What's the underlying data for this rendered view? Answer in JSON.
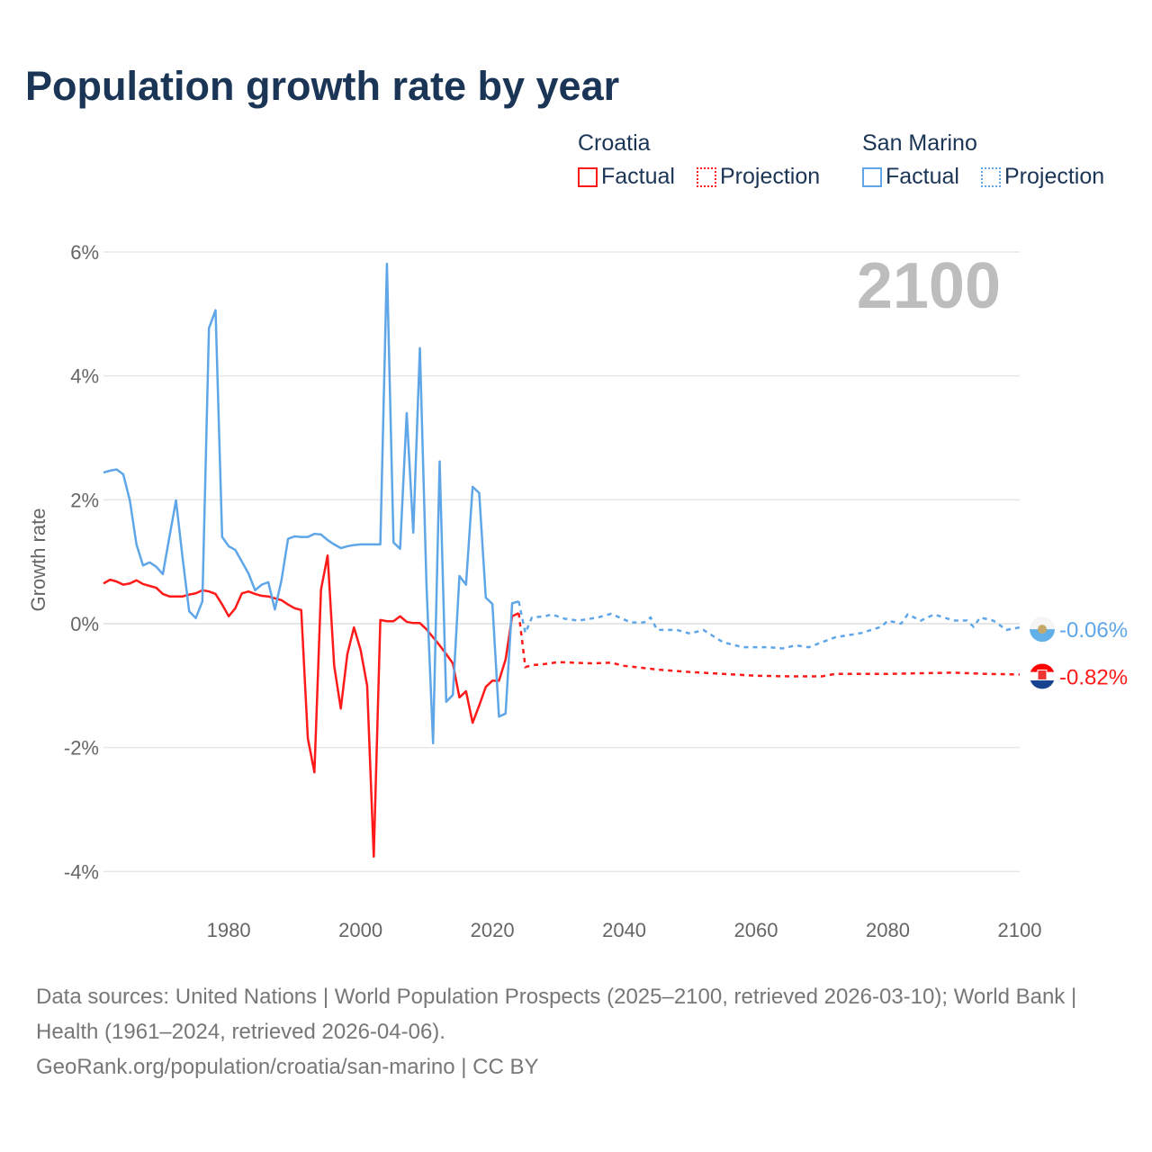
{
  "title": "Population growth rate by year",
  "legend": [
    {
      "country": "Croatia",
      "factual": "Factual",
      "projection": "Projection",
      "color": "#ff1a1a"
    },
    {
      "country": "San Marino",
      "factual": "Factual",
      "projection": "Projection",
      "color": "#5ea6e8"
    }
  ],
  "year_label": "2100",
  "footer": {
    "sources": "Data sources: United Nations | World Population Prospects (2025–2100, retrieved 2026-03-10); World Bank | Health (1961–2024, retrieved 2026-04-06).",
    "credit": "GeoRank.org/population/croatia/san-marino | CC BY"
  },
  "chart_data": {
    "type": "line",
    "title": "Population growth rate by year",
    "xlabel": "",
    "ylabel": "Growth rate",
    "xlim": [
      1961,
      2100
    ],
    "ylim": [
      -4.5,
      6.3
    ],
    "xticks": [
      1980,
      2000,
      2020,
      2040,
      2060,
      2080,
      2100
    ],
    "yticks": [
      6,
      4,
      2,
      0,
      -2,
      -4
    ],
    "ytick_labels": [
      "6%",
      "4%",
      "2%",
      "0%",
      "-2%",
      "-4%"
    ],
    "grid": true,
    "legend_position": "top-right",
    "series": [
      {
        "name": "Croatia",
        "color": "#ff1a1a",
        "end_label": "-0.82%",
        "factual": {
          "start": 1961,
          "values": [
            0.65,
            0.71,
            0.68,
            0.63,
            0.65,
            0.7,
            0.64,
            0.61,
            0.58,
            0.48,
            0.44,
            0.44,
            0.44,
            0.47,
            0.49,
            0.54,
            0.52,
            0.48,
            0.31,
            0.12,
            0.25,
            0.49,
            0.52,
            0.48,
            0.45,
            0.44,
            0.41,
            0.38,
            0.31,
            0.25,
            0.22,
            -1.85,
            -2.4,
            0.55,
            1.1,
            -0.68,
            -1.37,
            -0.49,
            -0.06,
            -0.42,
            -1.0,
            -3.76,
            0.06,
            0.04,
            0.04,
            0.12,
            0.03,
            0.01,
            0.01,
            -0.09,
            -0.22,
            -0.35,
            -0.49,
            -0.64,
            -1.19,
            -1.09,
            -1.6,
            -1.32,
            -1.02,
            -0.92,
            -0.92,
            -0.58,
            0.12,
            0.17
          ]
        },
        "projection": [
          [
            2024,
            0.17
          ],
          [
            2025,
            -0.7
          ],
          [
            2026,
            -0.67
          ],
          [
            2028,
            -0.65
          ],
          [
            2030,
            -0.62
          ],
          [
            2035,
            -0.64
          ],
          [
            2038,
            -0.63
          ],
          [
            2040,
            -0.68
          ],
          [
            2045,
            -0.74
          ],
          [
            2050,
            -0.78
          ],
          [
            2055,
            -0.81
          ],
          [
            2060,
            -0.84
          ],
          [
            2065,
            -0.85
          ],
          [
            2070,
            -0.85
          ],
          [
            2072,
            -0.81
          ],
          [
            2080,
            -0.81
          ],
          [
            2090,
            -0.79
          ],
          [
            2095,
            -0.81
          ],
          [
            2100,
            -0.82
          ]
        ]
      },
      {
        "name": "San Marino",
        "color": "#5ea6e8",
        "end_label": "-0.06%",
        "factual": {
          "start": 1961,
          "values": [
            2.44,
            2.47,
            2.49,
            2.41,
            1.99,
            1.28,
            0.94,
            0.99,
            0.92,
            0.8,
            1.4,
            1.99,
            1.06,
            0.2,
            0.09,
            0.36,
            4.77,
            5.06,
            1.4,
            1.25,
            1.19,
            1.0,
            0.81,
            0.54,
            0.63,
            0.67,
            0.23,
            0.7,
            1.37,
            1.41,
            1.4,
            1.4,
            1.45,
            1.44,
            1.35,
            1.28,
            1.22,
            1.25,
            1.27,
            1.28,
            1.28,
            1.28,
            1.28,
            5.81,
            1.31,
            1.21,
            3.4,
            1.47,
            4.45,
            0.63,
            -1.93,
            2.62,
            -1.26,
            -1.15,
            0.77,
            0.63,
            2.21,
            2.11,
            0.42,
            0.32,
            -1.5,
            -1.45,
            0.33,
            0.36
          ]
        },
        "projection": [
          [
            2024,
            0.36
          ],
          [
            2025,
            -0.15
          ],
          [
            2026,
            0.1
          ],
          [
            2028,
            0.12
          ],
          [
            2029,
            0.15
          ],
          [
            2031,
            0.08
          ],
          [
            2033,
            0.05
          ],
          [
            2036,
            0.1
          ],
          [
            2038,
            0.16
          ],
          [
            2041,
            0.02
          ],
          [
            2043,
            0.02
          ],
          [
            2044,
            0.1
          ],
          [
            2045,
            -0.1
          ],
          [
            2048,
            -0.1
          ],
          [
            2050,
            -0.16
          ],
          [
            2052,
            -0.1
          ],
          [
            2055,
            -0.3
          ],
          [
            2058,
            -0.38
          ],
          [
            2062,
            -0.38
          ],
          [
            2064,
            -0.4
          ],
          [
            2066,
            -0.35
          ],
          [
            2068,
            -0.38
          ],
          [
            2070,
            -0.3
          ],
          [
            2072,
            -0.22
          ],
          [
            2076,
            -0.15
          ],
          [
            2079,
            -0.05
          ],
          [
            2080,
            0.05
          ],
          [
            2082,
            0.0
          ],
          [
            2083,
            0.15
          ],
          [
            2085,
            0.05
          ],
          [
            2087,
            0.15
          ],
          [
            2090,
            0.05
          ],
          [
            2092,
            0.05
          ],
          [
            2093,
            -0.05
          ],
          [
            2094,
            0.1
          ],
          [
            2096,
            0.05
          ],
          [
            2098,
            -0.1
          ],
          [
            2100,
            -0.06
          ]
        ]
      }
    ]
  }
}
